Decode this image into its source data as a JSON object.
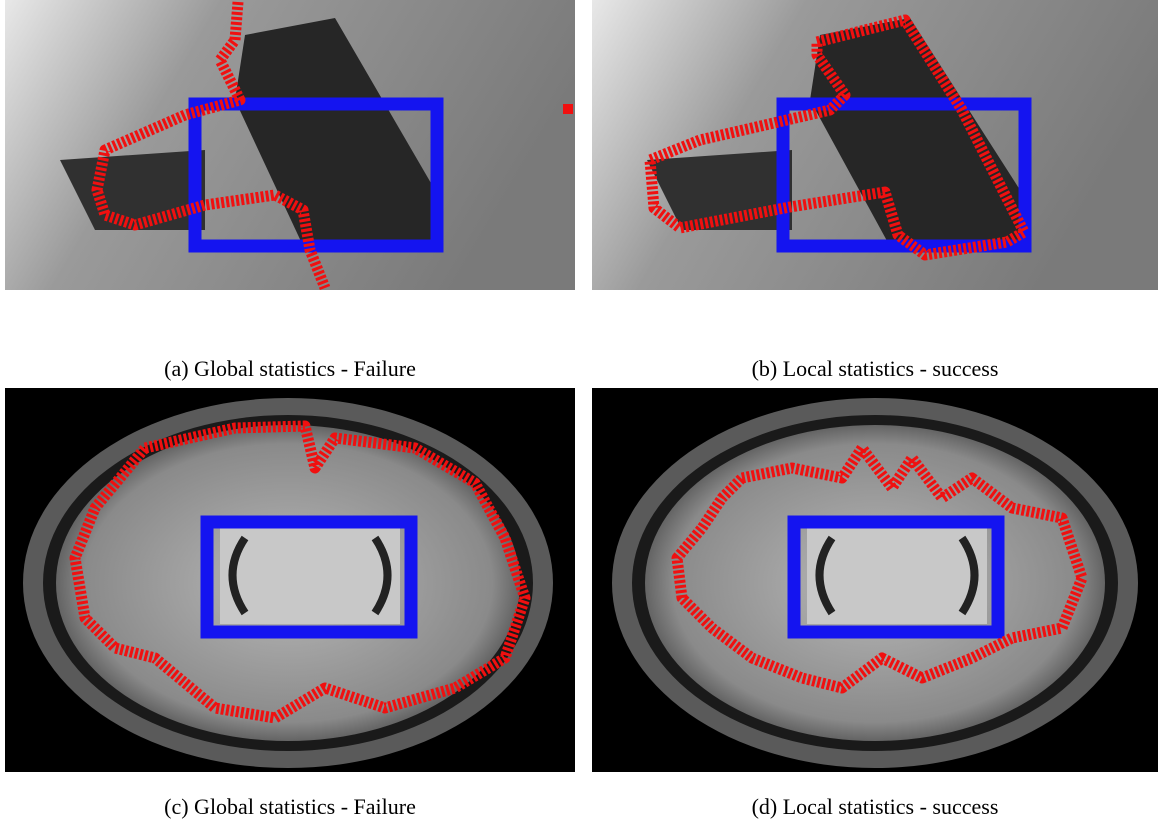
{
  "figure": {
    "panels": [
      {
        "caption": "(a) Global statistics - Failure"
      },
      {
        "caption": "(b) Local statistics - success"
      },
      {
        "caption": "(c) Global statistics - Failure"
      },
      {
        "caption": "(d) Local statistics - success"
      }
    ]
  }
}
